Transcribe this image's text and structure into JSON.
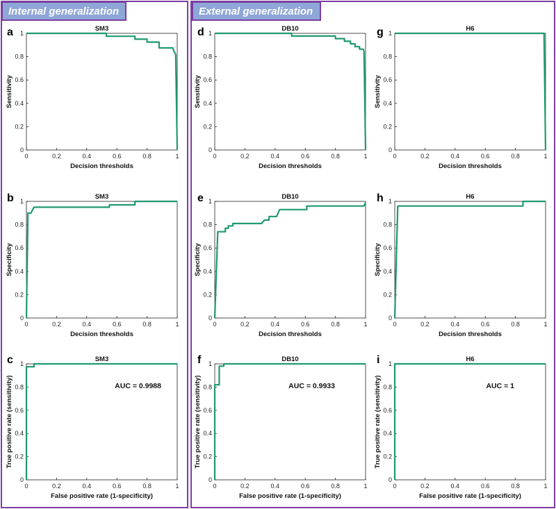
{
  "headers": {
    "internal": "Internal generalization",
    "external": "External generalization"
  },
  "colors": {
    "curve": "#1f9a6e",
    "group_border": "#7b3fa0",
    "header_bg": "#8fa6d8"
  },
  "panels": [
    {
      "letter": "a"
    },
    {
      "letter": "d"
    },
    {
      "letter": "g"
    },
    {
      "letter": "b"
    },
    {
      "letter": "e"
    },
    {
      "letter": "h"
    },
    {
      "letter": "c"
    },
    {
      "letter": "f"
    },
    {
      "letter": "i"
    }
  ],
  "chart_data": [
    {
      "type": "line",
      "title": "SM3",
      "xlabel": "Decision thresholds",
      "ylabel": "Sensitivity",
      "xlim": [
        0,
        1
      ],
      "ylim": [
        0,
        1
      ],
      "xticks": [
        "0",
        "0.2",
        "0.4",
        "0.6",
        "0.8",
        "1"
      ],
      "yticks": [
        "0",
        "0.2",
        "0.4",
        "0.6",
        "0.8",
        "1"
      ],
      "x": [
        0,
        0.53,
        0.53,
        0.72,
        0.72,
        0.8,
        0.8,
        0.88,
        0.88,
        0.97,
        0.98,
        0.99,
        1.0
      ],
      "y": [
        1,
        1,
        0.975,
        0.975,
        0.95,
        0.95,
        0.925,
        0.925,
        0.875,
        0.875,
        0.84,
        0.82,
        0.0
      ]
    },
    {
      "type": "line",
      "title": "DB10",
      "xlabel": "Decision thresholds",
      "ylabel": "Sensitivity",
      "xlim": [
        0,
        1
      ],
      "ylim": [
        0,
        1
      ],
      "xticks": [
        "0",
        "0.2",
        "0.4",
        "0.6",
        "0.8",
        "1"
      ],
      "yticks": [
        "0",
        "0.2",
        "0.4",
        "0.6",
        "0.8",
        "1"
      ],
      "x": [
        0,
        0.51,
        0.51,
        0.8,
        0.8,
        0.86,
        0.86,
        0.9,
        0.9,
        0.93,
        0.93,
        0.96,
        0.96,
        0.985,
        0.99,
        1.0
      ],
      "y": [
        1,
        1,
        0.977,
        0.977,
        0.955,
        0.955,
        0.932,
        0.932,
        0.91,
        0.91,
        0.886,
        0.886,
        0.864,
        0.864,
        0.841,
        0.0
      ]
    },
    {
      "type": "line",
      "title": "H6",
      "xlabel": "Decision thresholds",
      "ylabel": "Sensitivity",
      "xlim": [
        0,
        1
      ],
      "ylim": [
        0,
        1
      ],
      "xticks": [
        "0",
        "0.2",
        "0.4",
        "0.6",
        "0.8",
        "1"
      ],
      "yticks": [
        "0",
        "0.2",
        "0.4",
        "0.6",
        "0.8",
        "1"
      ],
      "x": [
        0,
        0.99,
        1.0
      ],
      "y": [
        1,
        1,
        0.0
      ]
    },
    {
      "type": "line",
      "title": "SM3",
      "xlabel": "Decision thresholds",
      "ylabel": "Specificity",
      "xlim": [
        0,
        1
      ],
      "ylim": [
        0,
        1
      ],
      "xticks": [
        "0",
        "0.2",
        "0.4",
        "0.6",
        "0.8",
        "1"
      ],
      "yticks": [
        "0",
        "0.2",
        "0.4",
        "0.6",
        "0.8",
        "1"
      ],
      "x": [
        0,
        0.01,
        0.01,
        0.03,
        0.05,
        0.05,
        0.55,
        0.55,
        0.72,
        0.72,
        1.0
      ],
      "y": [
        0,
        0.9,
        0.9,
        0.9,
        0.95,
        0.95,
        0.95,
        0.97,
        0.97,
        1,
        1
      ]
    },
    {
      "type": "line",
      "title": "DB10",
      "xlabel": "Decision thresholds",
      "ylabel": "Specificity",
      "xlim": [
        0,
        1
      ],
      "ylim": [
        0,
        1
      ],
      "xticks": [
        "0",
        "0.2",
        "0.4",
        "0.6",
        "0.8",
        "1"
      ],
      "yticks": [
        "0",
        "0.2",
        "0.4",
        "0.6",
        "0.8",
        "1"
      ],
      "x": [
        0,
        0.02,
        0.07,
        0.07,
        0.09,
        0.09,
        0.12,
        0.12,
        0.31,
        0.33,
        0.33,
        0.36,
        0.36,
        0.41,
        0.43,
        0.43,
        0.61,
        0.61,
        0.99,
        1.0
      ],
      "y": [
        0,
        0.74,
        0.74,
        0.77,
        0.77,
        0.79,
        0.79,
        0.81,
        0.81,
        0.84,
        0.84,
        0.84,
        0.87,
        0.87,
        0.93,
        0.93,
        0.93,
        0.96,
        0.96,
        0.99
      ]
    },
    {
      "type": "line",
      "title": "H6",
      "xlabel": "Decision thresholds",
      "ylabel": "Specificity",
      "xlim": [
        0,
        1
      ],
      "ylim": [
        0,
        1
      ],
      "xticks": [
        "0",
        "0.2",
        "0.4",
        "0.6",
        "0.8",
        "1"
      ],
      "yticks": [
        "0",
        "0.2",
        "0.4",
        "0.6",
        "0.8",
        "1"
      ],
      "x": [
        0,
        0.02,
        0.02,
        0.85,
        0.85,
        1.0
      ],
      "y": [
        0,
        0.96,
        0.96,
        0.96,
        1,
        1
      ]
    },
    {
      "type": "line",
      "title": "SM3",
      "xlabel": "False positive rate (1-specificity)",
      "ylabel": "True positive rate (sensitivity)",
      "annotation": "AUC = 0.9988",
      "xlim": [
        0,
        1
      ],
      "ylim": [
        0,
        1
      ],
      "xticks": [
        "0",
        "0.2",
        "0.4",
        "0.6",
        "0.8",
        "1"
      ],
      "yticks": [
        "0",
        "0.2",
        "0.4",
        "0.6",
        "0.8",
        "1"
      ],
      "x": [
        0,
        0,
        0.05,
        0.05,
        1.0
      ],
      "y": [
        0,
        0.975,
        0.975,
        1,
        1
      ]
    },
    {
      "type": "line",
      "title": "DB10",
      "xlabel": "False positive rate (1-specificity)",
      "ylabel": "True positive rate (sensitivity)",
      "annotation": "AUC = 0.9933",
      "xlim": [
        0,
        1
      ],
      "ylim": [
        0,
        1
      ],
      "xticks": [
        "0",
        "0.2",
        "0.4",
        "0.6",
        "0.8",
        "1"
      ],
      "yticks": [
        "0",
        "0.2",
        "0.4",
        "0.6",
        "0.8",
        "1"
      ],
      "x": [
        0,
        0,
        0.03,
        0.03,
        0.06,
        0.06,
        1.0
      ],
      "y": [
        0,
        0.82,
        0.82,
        0.98,
        0.98,
        1,
        1
      ]
    },
    {
      "type": "line",
      "title": "H6",
      "xlabel": "False positive rate (1-specificity)",
      "ylabel": "True positive rate (sensitivity)",
      "annotation": "AUC = 1",
      "xlim": [
        0,
        1
      ],
      "ylim": [
        0,
        1
      ],
      "xticks": [
        "0",
        "0.2",
        "0.4",
        "0.6",
        "0.8",
        "1"
      ],
      "yticks": [
        "0",
        "0.2",
        "0.4",
        "0.6",
        "0.8",
        "1"
      ],
      "x": [
        0,
        0,
        1.0
      ],
      "y": [
        0,
        1,
        1
      ]
    }
  ]
}
